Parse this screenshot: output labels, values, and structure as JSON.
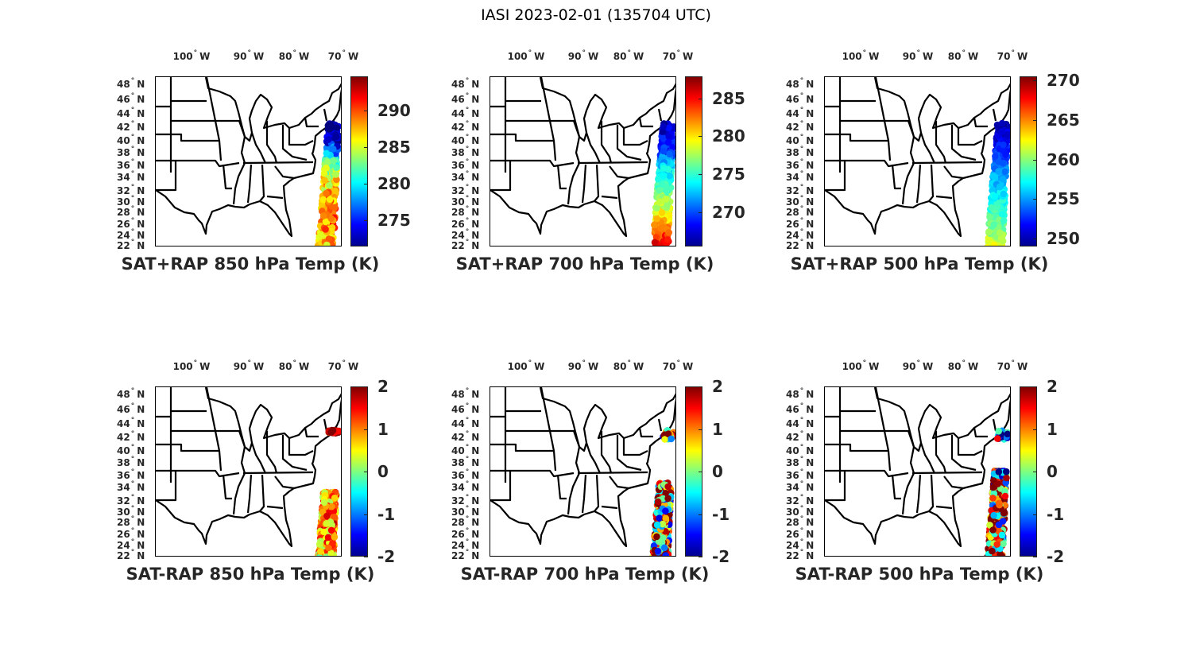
{
  "title": "IASI 2023-02-01 (135704 UTC)",
  "chart_data": [
    {
      "type": "scatter",
      "title": "SAT+RAP 850 hPa Temp (K)",
      "clim": [
        271.4,
        294.7
      ],
      "cbar_ticks": [
        275,
        280,
        285,
        290
      ],
      "lon_ticks": [
        "100",
        "90",
        "80",
        "70"
      ],
      "lat_ticks": [
        "48",
        "46",
        "44",
        "42",
        "40",
        "38",
        "36",
        "34",
        "32",
        "30",
        "28",
        "26",
        "24",
        "22"
      ],
      "swath": [
        {
          "lat": 42,
          "value": 272
        },
        {
          "lat": 39,
          "value": 273
        },
        {
          "lat": 37,
          "value": 278
        },
        {
          "lat": 35,
          "value": 283
        },
        {
          "lat": 33,
          "value": 286
        },
        {
          "lat": 30,
          "value": 288
        },
        {
          "lat": 26,
          "value": 289
        },
        {
          "lat": 22,
          "value": 287
        }
      ],
      "spread": 3,
      "swath_lat_range": [
        22,
        42
      ]
    },
    {
      "type": "scatter",
      "title": "SAT+RAP 700 hPa Temp (K)",
      "clim": [
        265.5,
        287.9
      ],
      "cbar_ticks": [
        270,
        275,
        280,
        285
      ],
      "lon_ticks": [
        "100",
        "90",
        "80",
        "70"
      ],
      "lat_ticks": [
        "48",
        "46",
        "44",
        "42",
        "40",
        "38",
        "36",
        "34",
        "32",
        "30",
        "28",
        "26",
        "24",
        "22"
      ],
      "swath": [
        {
          "lat": 42,
          "value": 267
        },
        {
          "lat": 38,
          "value": 269
        },
        {
          "lat": 34,
          "value": 274
        },
        {
          "lat": 30,
          "value": 277
        },
        {
          "lat": 26,
          "value": 281
        },
        {
          "lat": 22,
          "value": 286
        }
      ],
      "spread": 1.5,
      "swath_lat_range": [
        22,
        42
      ]
    },
    {
      "type": "scatter",
      "title": "SAT+RAP 500 hPa Temp (K)",
      "clim": [
        249,
        270.5
      ],
      "cbar_ticks": [
        250,
        255,
        260,
        265,
        270
      ],
      "lon_ticks": [
        "100",
        "90",
        "80",
        "70"
      ],
      "lat_ticks": [
        "48",
        "46",
        "44",
        "42",
        "40",
        "38",
        "36",
        "34",
        "32",
        "30",
        "28",
        "26",
        "24",
        "22"
      ],
      "swath": [
        {
          "lat": 42,
          "value": 250
        },
        {
          "lat": 38,
          "value": 252
        },
        {
          "lat": 34,
          "value": 255
        },
        {
          "lat": 30,
          "value": 257
        },
        {
          "lat": 26,
          "value": 259
        },
        {
          "lat": 22,
          "value": 262
        }
      ],
      "spread": 1,
      "swath_lat_range": [
        22,
        42
      ]
    },
    {
      "type": "scatter",
      "title": "SAT-RAP 850 hPa Temp (K)",
      "clim": [
        -2,
        2
      ],
      "cbar_ticks": [
        -2,
        -1,
        0,
        1,
        2
      ],
      "lon_ticks": [
        "100",
        "90",
        "80",
        "70"
      ],
      "lat_ticks": [
        "48",
        "46",
        "44",
        "42",
        "40",
        "38",
        "36",
        "34",
        "32",
        "30",
        "28",
        "26",
        "24",
        "22"
      ],
      "swath": [
        {
          "lat": 42,
          "value": 1.8
        },
        {
          "lat": 32,
          "value": 0.8
        },
        {
          "lat": 27,
          "value": 1.0
        },
        {
          "lat": 22,
          "value": 0.6
        }
      ],
      "spread": 0.8,
      "swath_lat_range": [
        22,
        32.5
      ],
      "extra_lat": [
        42,
        42.5
      ]
    },
    {
      "type": "scatter",
      "title": "SAT-RAP 700 hPa Temp (K)",
      "clim": [
        -2,
        2
      ],
      "cbar_ticks": [
        -2,
        -1,
        0,
        1,
        2
      ],
      "lon_ticks": [
        "100",
        "90",
        "80",
        "70"
      ],
      "lat_ticks": [
        "48",
        "46",
        "44",
        "42",
        "40",
        "38",
        "36",
        "34",
        "32",
        "30",
        "28",
        "26",
        "24",
        "22"
      ],
      "swath": [
        {
          "lat": 34,
          "value": 0.6
        },
        {
          "lat": 28,
          "value": 0.5
        },
        {
          "lat": 22,
          "value": 0.8
        }
      ],
      "spread": 2.2,
      "swath_lat_range": [
        22,
        34
      ],
      "extra_lat": [
        41,
        42.5
      ]
    },
    {
      "type": "scatter",
      "title": "SAT-RAP 500 hPa Temp (K)",
      "clim": [
        -2,
        2
      ],
      "cbar_ticks": [
        -2,
        -1,
        0,
        1,
        2
      ],
      "lon_ticks": [
        "100",
        "90",
        "80",
        "70"
      ],
      "lat_ticks": [
        "48",
        "46",
        "44",
        "42",
        "40",
        "38",
        "36",
        "34",
        "32",
        "30",
        "28",
        "26",
        "24",
        "22"
      ],
      "swath": [
        {
          "lat": 36,
          "value": -0.6
        },
        {
          "lat": 33,
          "value": 1.0
        },
        {
          "lat": 28,
          "value": 1.0
        },
        {
          "lat": 22,
          "value": 1.2
        }
      ],
      "spread": 2.4,
      "swath_lat_range": [
        22,
        36
      ],
      "extra_lat": [
        41,
        42.5
      ]
    }
  ],
  "axis_units": {
    "lon": "W",
    "lat": "N"
  }
}
